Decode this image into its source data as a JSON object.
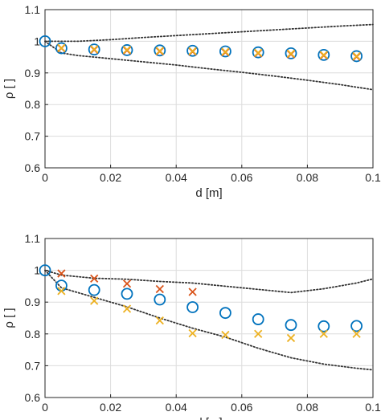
{
  "chart_data": [
    {
      "type": "scatter",
      "title": "",
      "xlabel": "d [m]",
      "ylabel": "ρ [ ]",
      "xlim": [
        0,
        0.1
      ],
      "ylim": [
        0.6,
        1.1
      ],
      "xticks": [
        0,
        0.02,
        0.04,
        0.06,
        0.08,
        0.1
      ],
      "xtick_labels": [
        "0",
        "0.02",
        "0.04",
        "0.06",
        "0.08",
        "0.1"
      ],
      "yticks": [
        0.6,
        0.7,
        0.8,
        0.9,
        1.0,
        1.1
      ],
      "ytick_labels": [
        "0.6",
        "0.7",
        "0.8",
        "0.9",
        "1",
        "1.1"
      ],
      "grid": true,
      "series": [
        {
          "marker": "circle",
          "color": "#0072BD",
          "x": [
            0,
            0.005,
            0.015,
            0.025,
            0.035,
            0.045,
            0.055,
            0.065,
            0.075,
            0.085,
            0.095
          ],
          "y": [
            1.0,
            0.978,
            0.974,
            0.972,
            0.971,
            0.97,
            0.968,
            0.965,
            0.962,
            0.957,
            0.953
          ]
        },
        {
          "marker": "x",
          "color": "#D95319",
          "x": [
            0.005,
            0.015,
            0.025,
            0.035,
            0.045,
            0.055,
            0.065,
            0.075,
            0.085,
            0.095
          ],
          "y": [
            0.978,
            0.973,
            0.971,
            0.968,
            0.967,
            0.965,
            0.962,
            0.959,
            0.955,
            0.951
          ]
        },
        {
          "marker": "x",
          "color": "#EDB120",
          "x": [
            0.005,
            0.015,
            0.025,
            0.035,
            0.045,
            0.055,
            0.065,
            0.075,
            0.085,
            0.095
          ],
          "y": [
            0.979,
            0.975,
            0.973,
            0.97,
            0.969,
            0.967,
            0.964,
            0.961,
            0.957,
            0.953
          ]
        },
        {
          "marker": "dotted-line",
          "color": "#333333",
          "x": [
            0,
            0.01,
            0.02,
            0.03,
            0.04,
            0.05,
            0.06,
            0.07,
            0.08,
            0.09,
            0.1
          ],
          "y": [
            1.0,
            1.0,
            1.005,
            1.012,
            1.018,
            1.024,
            1.03,
            1.036,
            1.042,
            1.048,
            1.053
          ]
        },
        {
          "marker": "dotted-line",
          "color": "#333333",
          "x": [
            0,
            0.005,
            0.01,
            0.02,
            0.03,
            0.04,
            0.05,
            0.06,
            0.07,
            0.08,
            0.09,
            0.1
          ],
          "y": [
            1.0,
            0.963,
            0.955,
            0.945,
            0.935,
            0.925,
            0.913,
            0.902,
            0.89,
            0.877,
            0.863,
            0.847
          ]
        }
      ]
    },
    {
      "type": "scatter",
      "title": "",
      "xlabel": "d [m]",
      "ylabel": "ρ [ ]",
      "xlim": [
        0,
        0.1
      ],
      "ylim": [
        0.6,
        1.1
      ],
      "xticks": [
        0,
        0.02,
        0.04,
        0.06,
        0.08,
        0.1
      ],
      "xtick_labels": [
        "0",
        "0.02",
        "0.04",
        "0.06",
        "0.08",
        "0.1"
      ],
      "yticks": [
        0.6,
        0.7,
        0.8,
        0.9,
        1.0,
        1.1
      ],
      "ytick_labels": [
        "0.6",
        "0.7",
        "0.8",
        "0.9",
        "1",
        "1.1"
      ],
      "grid": true,
      "series": [
        {
          "marker": "circle",
          "color": "#0072BD",
          "x": [
            0,
            0.005,
            0.015,
            0.025,
            0.035,
            0.045,
            0.055,
            0.065,
            0.075,
            0.085,
            0.095
          ],
          "y": [
            1.0,
            0.952,
            0.938,
            0.926,
            0.908,
            0.884,
            0.866,
            0.846,
            0.828,
            0.824,
            0.825
          ]
        },
        {
          "marker": "x",
          "color": "#D95319",
          "x": [
            0.005,
            0.015,
            0.025,
            0.035,
            0.045
          ],
          "y": [
            0.99,
            0.974,
            0.958,
            0.941,
            0.932
          ]
        },
        {
          "marker": "x",
          "color": "#EDB120",
          "x": [
            0.005,
            0.015,
            0.025,
            0.035,
            0.045,
            0.055,
            0.065,
            0.075,
            0.085,
            0.095
          ],
          "y": [
            0.935,
            0.904,
            0.879,
            0.842,
            0.802,
            0.797,
            0.8,
            0.787,
            0.8,
            0.8
          ]
        },
        {
          "marker": "dotted-line",
          "color": "#333333",
          "x": [
            0,
            0.005,
            0.015,
            0.025,
            0.035,
            0.045,
            0.055,
            0.065,
            0.075,
            0.085,
            0.095,
            0.1
          ],
          "y": [
            1.0,
            0.985,
            0.975,
            0.972,
            0.965,
            0.96,
            0.95,
            0.94,
            0.93,
            0.942,
            0.96,
            0.973
          ]
        },
        {
          "marker": "dotted-line",
          "color": "#333333",
          "x": [
            0,
            0.005,
            0.015,
            0.025,
            0.035,
            0.045,
            0.055,
            0.065,
            0.075,
            0.085,
            0.095,
            0.1
          ],
          "y": [
            1.0,
            0.945,
            0.915,
            0.885,
            0.85,
            0.818,
            0.79,
            0.755,
            0.725,
            0.705,
            0.692,
            0.687
          ]
        }
      ]
    }
  ]
}
